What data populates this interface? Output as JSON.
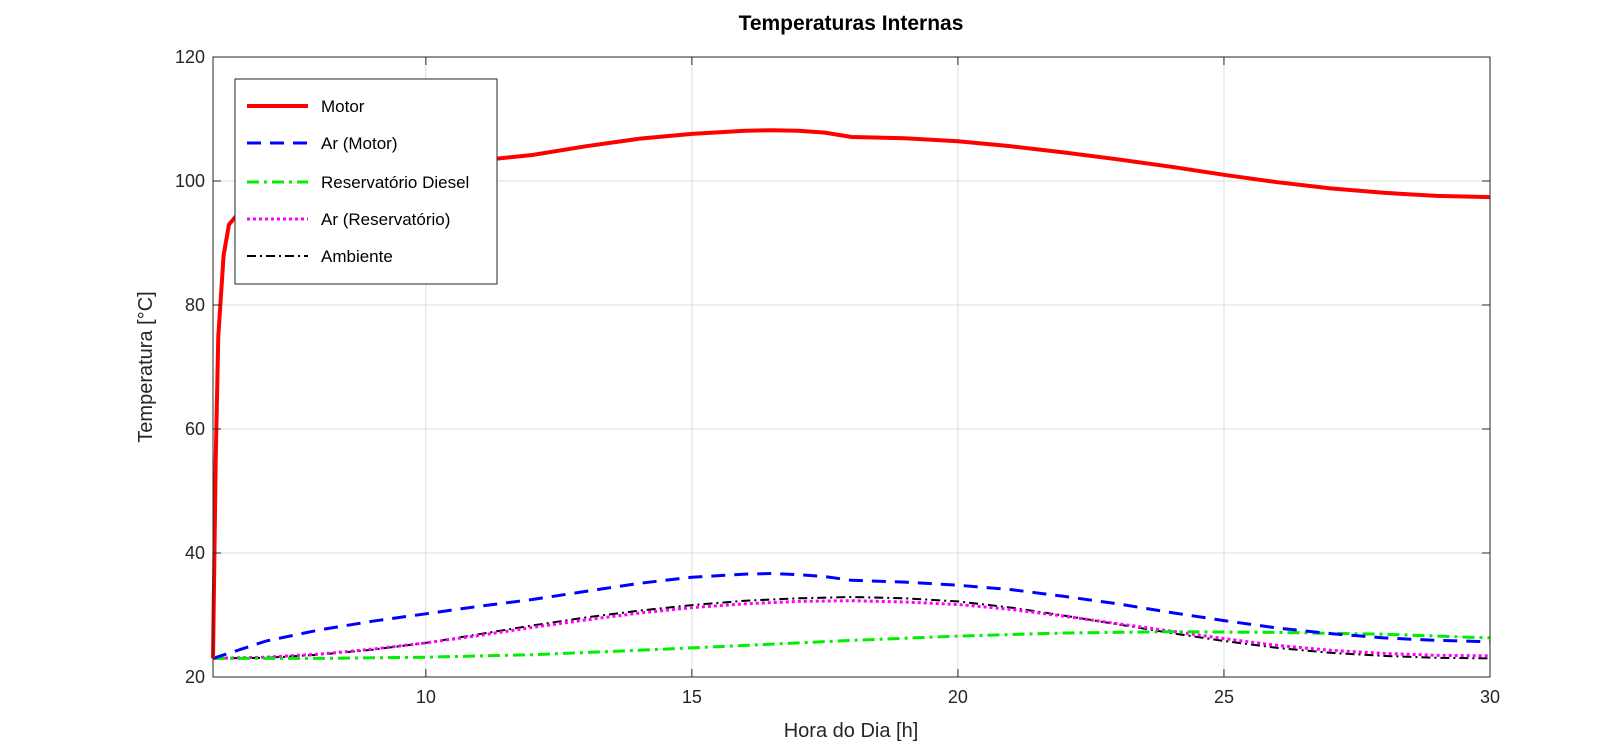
{
  "chart_data": {
    "type": "line",
    "title": "Temperaturas Internas",
    "xlabel": "Hora do Dia [h]",
    "ylabel": "Temperatura [°C]",
    "xlim": [
      6,
      30
    ],
    "ylim": [
      20,
      120
    ],
    "xticks": [
      10,
      15,
      20,
      25,
      30
    ],
    "yticks": [
      20,
      40,
      60,
      80,
      100,
      120
    ],
    "grid": true,
    "legend_position": "top-left",
    "series": [
      {
        "name": "Motor",
        "color": "#ff0000",
        "style": "solid",
        "x": [
          6,
          6.05,
          6.1,
          6.2,
          6.3,
          6.5,
          6.8,
          7,
          8,
          9,
          10,
          11,
          12,
          13,
          14,
          15,
          16,
          16.5,
          17,
          17.5,
          18,
          19,
          20,
          21,
          22,
          23,
          24,
          25,
          26,
          27,
          28,
          29,
          30
        ],
        "y": [
          23,
          55,
          75,
          88,
          93,
          95,
          95.8,
          96.5,
          98.5,
          100.5,
          102.2,
          103.3,
          104.2,
          105.6,
          106.8,
          107.6,
          108.1,
          108.2,
          108.1,
          107.8,
          107.1,
          106.9,
          106.4,
          105.6,
          104.6,
          103.5,
          102.3,
          101.0,
          99.8,
          98.8,
          98.1,
          97.6,
          97.4
        ]
      },
      {
        "name": "Ar (Motor)",
        "color": "#0000ff",
        "style": "dashed",
        "x": [
          6,
          7,
          8,
          9,
          10,
          11,
          12,
          13,
          14,
          15,
          16,
          16.5,
          17,
          17.5,
          18,
          19,
          20,
          21,
          22,
          23,
          24,
          25,
          26,
          27,
          28,
          29,
          30
        ],
        "y": [
          23,
          25.8,
          27.6,
          29.0,
          30.2,
          31.4,
          32.5,
          33.8,
          35.1,
          36.1,
          36.6,
          36.7,
          36.5,
          36.2,
          35.6,
          35.3,
          34.8,
          34.1,
          33.0,
          31.8,
          30.4,
          29.1,
          27.9,
          27.0,
          26.3,
          25.9,
          25.7
        ]
      },
      {
        "name": "Reservatório Diesel",
        "color": "#00ee00",
        "style": "dashdot",
        "x": [
          6,
          8,
          10,
          12,
          14,
          16,
          18,
          20,
          22,
          24,
          26,
          28,
          30
        ],
        "y": [
          23,
          23.0,
          23.2,
          23.6,
          24.3,
          25.1,
          25.9,
          26.6,
          27.1,
          27.3,
          27.2,
          26.9,
          26.3
        ]
      },
      {
        "name": "Ar (Reservatório)",
        "color": "#ff00ff",
        "style": "dotted",
        "x": [
          6,
          7,
          8,
          9,
          10,
          11,
          12,
          13,
          14,
          15,
          16,
          17,
          18,
          19,
          20,
          21,
          22,
          23,
          24,
          25,
          26,
          27,
          28,
          29,
          30
        ],
        "y": [
          23,
          23.2,
          23.7,
          24.5,
          25.5,
          26.7,
          28.0,
          29.2,
          30.3,
          31.2,
          31.8,
          32.2,
          32.3,
          32.1,
          31.7,
          30.9,
          29.8,
          28.6,
          27.4,
          26.2,
          25.1,
          24.3,
          23.8,
          23.5,
          23.4
        ]
      },
      {
        "name": "Ambiente",
        "color": "#000000",
        "style": "dashdot",
        "x": [
          6,
          7,
          8,
          9,
          10,
          11,
          12,
          13,
          14,
          15,
          16,
          17,
          18,
          19,
          20,
          21,
          22,
          23,
          24,
          25,
          26,
          27,
          28,
          29,
          30
        ],
        "y": [
          23,
          23.1,
          23.6,
          24.4,
          25.5,
          26.9,
          28.3,
          29.6,
          30.7,
          31.6,
          32.3,
          32.7,
          32.9,
          32.7,
          32.2,
          31.2,
          29.9,
          28.5,
          27.1,
          25.8,
          24.7,
          23.9,
          23.4,
          23.1,
          23.0
        ]
      }
    ]
  }
}
